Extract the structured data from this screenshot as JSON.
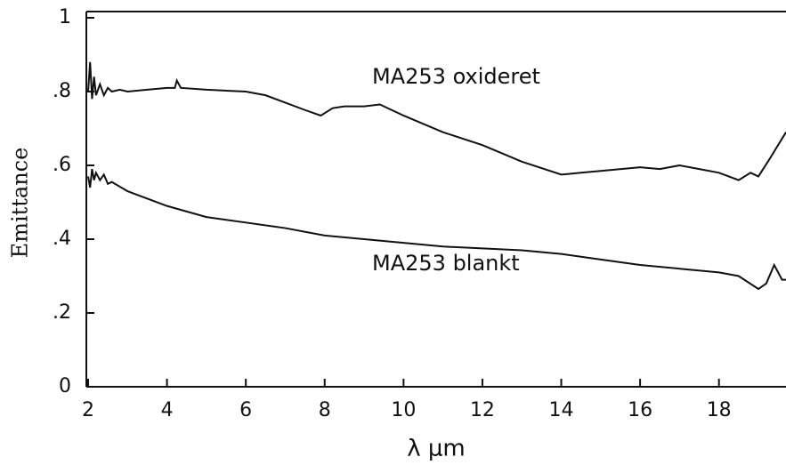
{
  "chart_data": {
    "type": "line",
    "xlabel": "λ  μm",
    "ylabel": "Emittance",
    "annotations": [
      "MA253 oxideret",
      "MA253 blankt"
    ],
    "xlim": [
      2,
      19.7
    ],
    "ylim": [
      0,
      1
    ],
    "xticks": [
      2,
      4,
      6,
      8,
      10,
      12,
      14,
      16,
      18
    ],
    "yticks": [
      0,
      {
        "value": 0.2,
        "label": ".2"
      },
      {
        "value": 0.4,
        "label": ".4"
      },
      {
        "value": 0.6,
        "label": ".6"
      },
      {
        "value": 0.8,
        "label": ".8"
      },
      1
    ],
    "series": [
      {
        "name": "MA253 oxideret",
        "color": "#111111",
        "x": [
          2.0,
          2.05,
          2.1,
          2.15,
          2.2,
          2.3,
          2.4,
          2.5,
          2.6,
          2.8,
          3,
          3.5,
          4,
          4.2,
          4.25,
          4.35,
          5,
          6,
          6.5,
          7,
          7.5,
          7.9,
          8.2,
          8.5,
          9,
          9.4,
          10,
          11,
          12,
          13,
          14,
          14.5,
          15,
          16,
          16.5,
          17,
          17.5,
          18,
          18.5,
          18.8,
          19,
          19.3,
          19.7
        ],
        "values": [
          0.8,
          0.88,
          0.78,
          0.84,
          0.79,
          0.82,
          0.79,
          0.81,
          0.8,
          0.805,
          0.8,
          0.805,
          0.81,
          0.81,
          0.83,
          0.81,
          0.805,
          0.8,
          0.79,
          0.77,
          0.75,
          0.735,
          0.755,
          0.76,
          0.76,
          0.765,
          0.735,
          0.69,
          0.655,
          0.61,
          0.575,
          0.58,
          0.585,
          0.595,
          0.59,
          0.6,
          0.59,
          0.58,
          0.56,
          0.58,
          0.57,
          0.62,
          0.69
        ]
      },
      {
        "name": "MA253 blankt",
        "color": "#111111",
        "x": [
          2.0,
          2.05,
          2.1,
          2.15,
          2.2,
          2.3,
          2.4,
          2.5,
          2.6,
          3,
          4,
          5,
          6,
          7,
          8,
          9,
          10,
          11,
          12,
          13,
          14,
          15,
          16,
          17,
          18,
          18.5,
          19,
          19.2,
          19.4,
          19.6,
          19.7
        ],
        "values": [
          0.57,
          0.54,
          0.59,
          0.56,
          0.58,
          0.56,
          0.575,
          0.55,
          0.555,
          0.53,
          0.49,
          0.46,
          0.445,
          0.43,
          0.41,
          0.4,
          0.39,
          0.38,
          0.375,
          0.37,
          0.36,
          0.345,
          0.33,
          0.32,
          0.31,
          0.3,
          0.265,
          0.28,
          0.33,
          0.29,
          0.29
        ]
      }
    ]
  }
}
